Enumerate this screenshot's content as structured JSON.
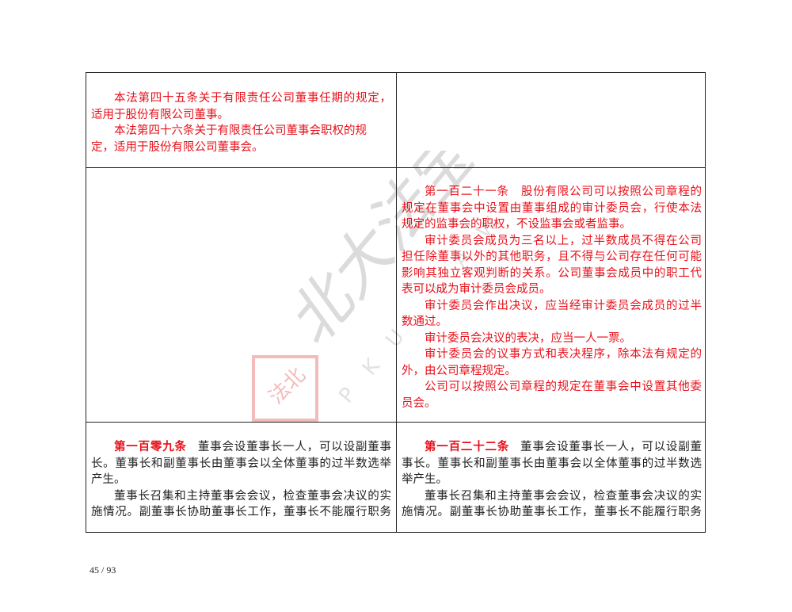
{
  "rows": [
    {
      "left": {
        "color": "red",
        "lines": [
          {
            "t": "本法第四十五条关于有限责任公司董事任期的规定，",
            "ind": true,
            "full": true
          },
          {
            "t": "适用于股份有限公司董事。"
          },
          {
            "t": "本法第四十六条关于有限责任公司董事会职权的规",
            "ind": true
          },
          {
            "t": "定，适用于股份有限公司董事会。"
          }
        ]
      },
      "right": {
        "color": "red",
        "lines": []
      }
    },
    {
      "left": {
        "color": "red",
        "lines": []
      },
      "right": {
        "color": "red",
        "lines": [
          {
            "t": "第一百二十一条　股份有限公司可以按照公司章程的",
            "ind": true,
            "full": true
          },
          {
            "t": "规定在董事会中设置由董事组成的审计委员会，行使本法",
            "full": true
          },
          {
            "t": "规定的监事会的职权，不设监事会或者监事。"
          },
          {
            "t": "审计委员会成员为三名以上，过半数成员不得在公司",
            "ind": true,
            "full": true
          },
          {
            "t": "担任除董事以外的其他职务，且不得与公司存在任何可能",
            "full": true
          },
          {
            "t": "影响其独立客观判断的关系。公司董事会成员中的职工代",
            "full": true
          },
          {
            "t": "表可以成为审计委员会成员。"
          },
          {
            "t": "审计委员会作出决议，应当经审计委员会成员的过半",
            "ind": true,
            "full": true
          },
          {
            "t": "数通过。"
          },
          {
            "t": "审计委员会决议的表决，应当一人一票。",
            "ind": true
          },
          {
            "t": "审计委员会的议事方式和表决程序，除本法有规定的",
            "ind": true,
            "full": true
          },
          {
            "t": "外，由公司章程规定。"
          },
          {
            "t": "公司可以按照公司章程的规定在董事会中设置其他委",
            "ind": true,
            "full": true
          },
          {
            "t": "员会。"
          }
        ]
      }
    },
    {
      "left": {
        "color": "black",
        "lines": [
          {
            "art": "第一百零九条",
            "t": "董事会设董事长一人，可以设副董事",
            "ind": true,
            "full": true
          },
          {
            "t": "长。董事长和副董事长由董事会以全体董事的过半数选举",
            "full": true
          },
          {
            "t": "产生。"
          },
          {
            "t": "董事长召集和主持董事会会议，检查董事会决议的实",
            "ind": true,
            "full": true
          },
          {
            "t": "施情况。副董事长协助董事长工作，董事长不能履行职务",
            "full": true
          }
        ]
      },
      "right": {
        "color": "black",
        "lines": [
          {
            "art": "第一百二十二条",
            "t": "董事会设董事长一人，可以设副董",
            "ind": true,
            "full": true
          },
          {
            "t": "事长。董事长和副董事长由董事会以全体董事的过半数选",
            "full": true
          },
          {
            "t": "举产生。"
          },
          {
            "t": "董事长召集和主持董事会会议，检查董事会决议的实",
            "ind": true,
            "full": true
          },
          {
            "t": "施情况。副董事长协助董事长工作，董事长不能履行职务",
            "full": true
          }
        ]
      }
    }
  ],
  "watermark": {
    "text": "北大法宝",
    "latin": "PKU LAW",
    "seal": "法北大宝"
  },
  "page_number": "45 / 93"
}
